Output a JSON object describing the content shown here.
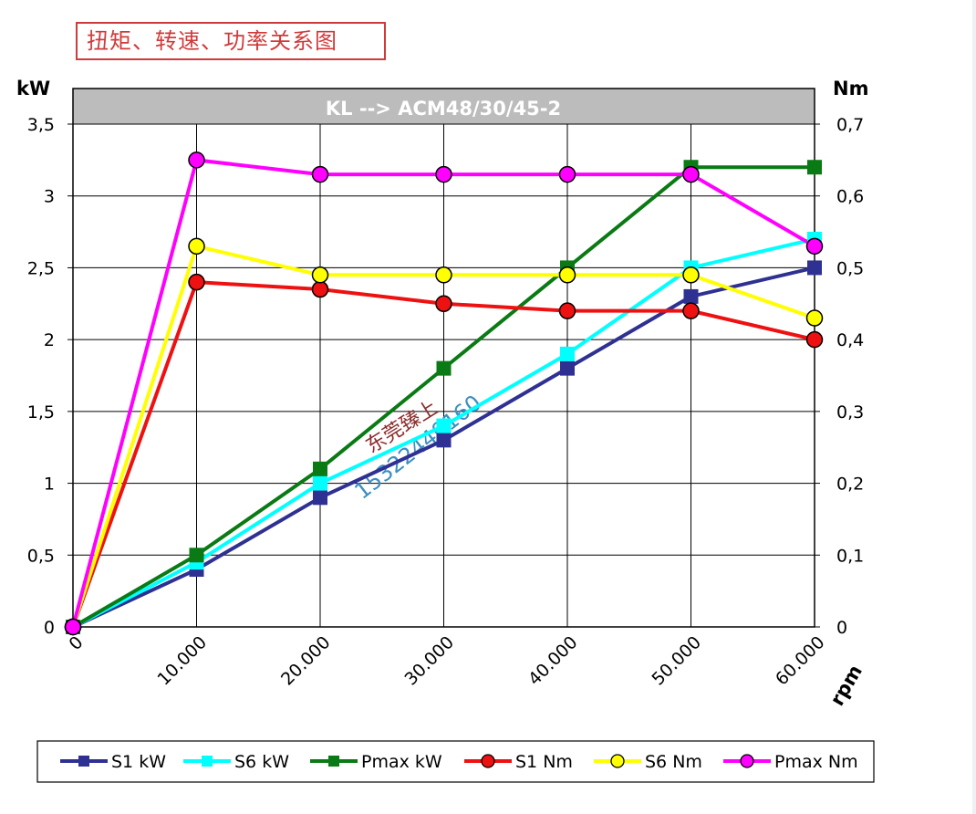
{
  "caption": "扭矩、转速、功率关系图",
  "chart_data": {
    "type": "line",
    "title": "KL -->  ACM48/30/45-2",
    "xlabel": "rpm",
    "ylabel_left": "kW",
    "ylabel_right": "Nm",
    "x": [
      0,
      10000,
      20000,
      30000,
      40000,
      50000,
      60000
    ],
    "x_tick_labels": [
      "0",
      "10.000",
      "20.000",
      "30.000",
      "40.000",
      "50.000",
      "60.000"
    ],
    "y_left_lim": [
      0,
      3.5
    ],
    "y_left_ticks": [
      "0",
      "0,5",
      "1",
      "1,5",
      "2",
      "2,5",
      "3",
      "3,5"
    ],
    "y_right_lim": [
      0,
      0.7
    ],
    "y_right_ticks": [
      "0",
      "0,1",
      "0,2",
      "0,3",
      "0,4",
      "0,5",
      "0,6",
      "0,7"
    ],
    "grid": true,
    "legend_position": "bottom",
    "series": [
      {
        "name": "S1 kW",
        "axis": "left",
        "marker": "square",
        "color": "#2e3192",
        "values": [
          0,
          0.4,
          0.9,
          1.3,
          1.8,
          2.3,
          2.5
        ]
      },
      {
        "name": "S6 kW",
        "axis": "left",
        "marker": "square",
        "color": "#00ffff",
        "values": [
          0,
          0.45,
          1.0,
          1.4,
          1.9,
          2.5,
          2.7
        ]
      },
      {
        "name": "Pmax kW",
        "axis": "left",
        "marker": "square",
        "color": "#0a7a14",
        "values": [
          0,
          0.5,
          1.1,
          1.8,
          2.5,
          3.2,
          3.2
        ]
      },
      {
        "name": "S1 Nm",
        "axis": "right",
        "marker": "circle",
        "color": "#ee1111",
        "values": [
          0,
          0.48,
          0.47,
          0.45,
          0.44,
          0.44,
          0.4
        ]
      },
      {
        "name": "S6 Nm",
        "axis": "right",
        "marker": "circle",
        "color": "#ffff00",
        "values": [
          0,
          0.53,
          0.49,
          0.49,
          0.49,
          0.49,
          0.43
        ]
      },
      {
        "name": "Pmax Nm",
        "axis": "right",
        "marker": "circle",
        "color": "#ff00ff",
        "values": [
          0,
          0.65,
          0.63,
          0.63,
          0.63,
          0.63,
          0.53
        ]
      }
    ],
    "watermark": [
      "东莞臻上",
      "15322440160"
    ]
  }
}
